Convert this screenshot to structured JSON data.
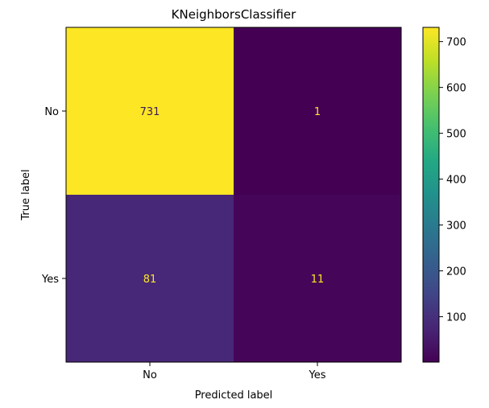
{
  "chart_data": {
    "type": "heatmap",
    "title": "KNeighborsClassifier",
    "xlabel": "Predicted label",
    "ylabel": "True label",
    "x_categories": [
      "No",
      "Yes"
    ],
    "y_categories": [
      "No",
      "Yes"
    ],
    "values": [
      [
        731,
        1
      ],
      [
        81,
        11
      ]
    ],
    "colormap": "viridis",
    "colorbar": {
      "range": [
        1,
        731
      ],
      "ticks": [
        100,
        200,
        300,
        400,
        500,
        600,
        700
      ]
    },
    "grid": false
  }
}
